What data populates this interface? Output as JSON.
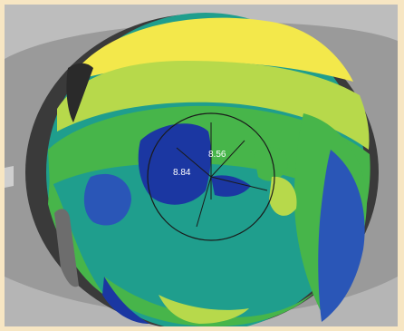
{
  "image": {
    "subject": "eye-topography-map",
    "readings": {
      "center": "8.56",
      "left": "8.84"
    },
    "colors": {
      "border": "#f7e6c3",
      "background_eye": "#8c8c8c",
      "eyelid_dark": "#2a2a2a",
      "yellow": "#f3e84b",
      "light_green": "#b7d94b",
      "green": "#47b54a",
      "teal": "#1f9e8d",
      "blue": "#2a56b7",
      "deep_blue": "#1b37a2",
      "ring_line": "#1a1a1a"
    }
  }
}
